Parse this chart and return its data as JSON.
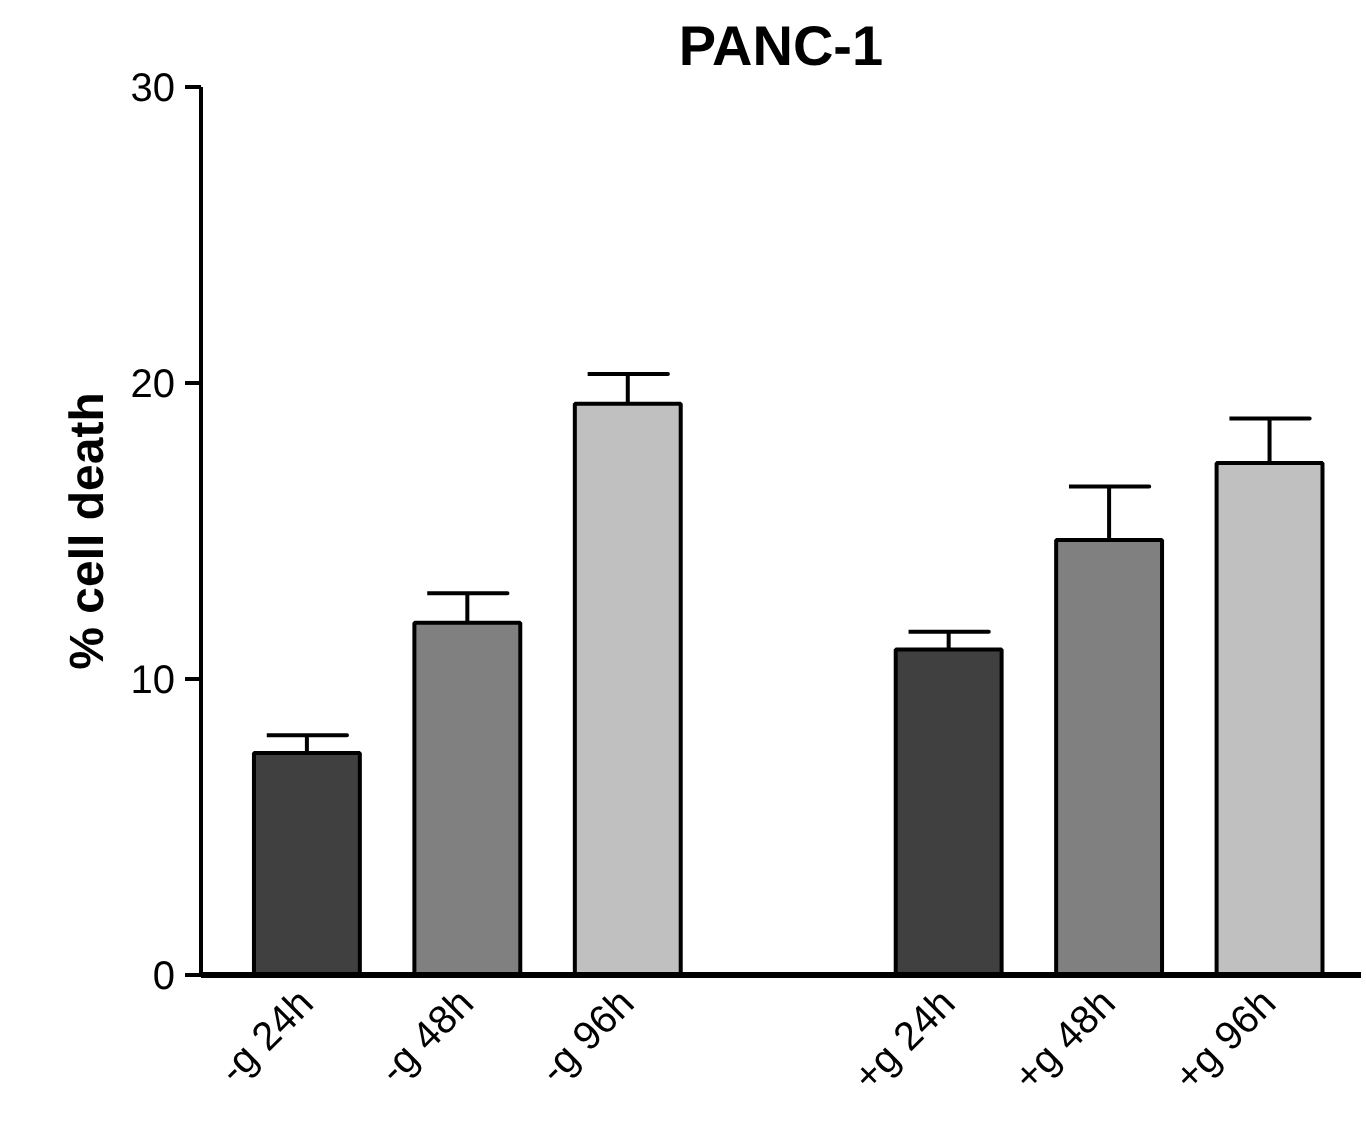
{
  "chart_data": {
    "type": "bar",
    "title": "PANC-1",
    "ylabel": "% cell death",
    "categories": [
      "-g 24h",
      "-g 48h",
      "-g 96h",
      null,
      "+g 24h",
      "+g 48h",
      "+g 96h"
    ],
    "values": [
      7.5,
      11.9,
      19.3,
      null,
      11.0,
      14.7,
      17.3
    ],
    "errors": [
      [
        7.5,
        8.1
      ],
      [
        11.9,
        12.9
      ],
      [
        19.3,
        20.3
      ],
      null,
      [
        11.0,
        11.6
      ],
      [
        14.7,
        16.5
      ],
      [
        17.3,
        18.8
      ]
    ],
    "colors": [
      "#404040",
      "#808080",
      "#c0c0c0",
      "#ffffff",
      "#404040",
      "#808080",
      "#c0c0c0"
    ],
    "ylim": [
      0,
      30
    ],
    "yticks": [
      0,
      10,
      20,
      30
    ],
    "grid": false
  }
}
